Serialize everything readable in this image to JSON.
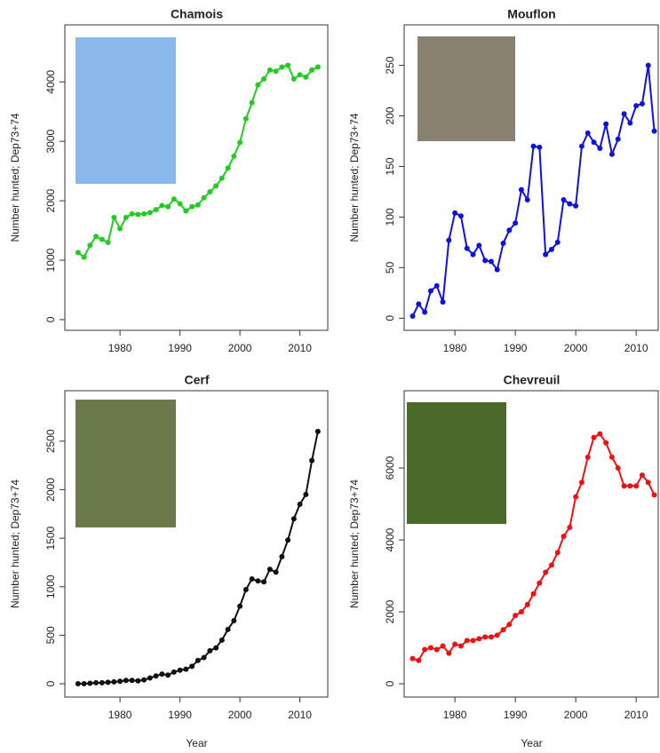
{
  "chart_data": [
    {
      "type": "line",
      "title": "Chamois",
      "y_label": "Number hunted; Dep73+74",
      "color": "#22cc22",
      "x": [
        1973,
        1974,
        1975,
        1976,
        1977,
        1978,
        1979,
        1980,
        1981,
        1982,
        1983,
        1984,
        1985,
        1986,
        1987,
        1988,
        1989,
        1990,
        1991,
        1992,
        1993,
        1994,
        1995,
        1996,
        1997,
        1998,
        1999,
        2000,
        2001,
        2002,
        2003,
        2004,
        2005,
        2006,
        2007,
        2008,
        2009,
        2010,
        2011,
        2012,
        2013
      ],
      "values": [
        1130,
        1050,
        1250,
        1400,
        1350,
        1300,
        1720,
        1530,
        1720,
        1780,
        1770,
        1780,
        1800,
        1850,
        1920,
        1900,
        2030,
        1950,
        1830,
        1900,
        1930,
        2050,
        2150,
        2250,
        2380,
        2550,
        2750,
        2980,
        3380,
        3650,
        3950,
        4050,
        4200,
        4180,
        4250,
        4280,
        4050,
        4120,
        4080,
        4200,
        4250
      ],
      "xlim": [
        1970.8,
        2014.8
      ],
      "xticks": [
        1980,
        1990,
        2000,
        2010
      ],
      "ylim": [
        -180,
        4960
      ],
      "yticks": [
        0,
        1000,
        2000,
        3000,
        4000
      ]
    },
    {
      "type": "line",
      "title": "Mouflon",
      "y_label": "Number hunted; Dep73+74",
      "color": "#1111dd",
      "x": [
        1973,
        1974,
        1975,
        1976,
        1977,
        1978,
        1979,
        1980,
        1981,
        1982,
        1983,
        1984,
        1985,
        1986,
        1987,
        1988,
        1989,
        1990,
        1991,
        1992,
        1993,
        1994,
        1995,
        1996,
        1997,
        1998,
        1999,
        2000,
        2001,
        2002,
        2003,
        2004,
        2005,
        2006,
        2007,
        2008,
        2009,
        2010,
        2011,
        2012,
        2013
      ],
      "values": [
        2,
        14,
        6,
        27,
        32,
        16,
        77,
        104,
        101,
        69,
        63,
        72,
        57,
        56,
        48,
        74,
        87,
        94,
        127,
        117,
        170,
        169,
        63,
        68,
        75,
        117,
        113,
        111,
        170,
        183,
        174,
        168,
        192,
        162,
        177,
        202,
        193,
        210,
        212,
        250,
        185
      ],
      "xlim": [
        1971.6,
        2013.8
      ],
      "xticks": [
        1980,
        1990,
        2000,
        2010
      ],
      "ylim": [
        -12,
        290
      ],
      "yticks": [
        0,
        50,
        100,
        150,
        200,
        250
      ]
    },
    {
      "type": "line",
      "title": "Cerf",
      "y_label": "Number hunted; Dep73+74",
      "x_label": "Year",
      "color": "#111111",
      "x": [
        1973,
        1974,
        1975,
        1976,
        1977,
        1978,
        1979,
        1980,
        1981,
        1982,
        1983,
        1984,
        1985,
        1986,
        1987,
        1988,
        1989,
        1990,
        1991,
        1992,
        1993,
        1994,
        1995,
        1996,
        1997,
        1998,
        1999,
        2000,
        2001,
        2002,
        2003,
        2004,
        2005,
        2006,
        2007,
        2008,
        2009,
        2010,
        2011,
        2012,
        2013
      ],
      "values": [
        0,
        0,
        5,
        10,
        10,
        15,
        20,
        25,
        35,
        35,
        30,
        40,
        60,
        80,
        100,
        90,
        120,
        140,
        150,
        180,
        240,
        270,
        340,
        370,
        450,
        560,
        650,
        800,
        970,
        1080,
        1060,
        1050,
        1180,
        1150,
        1310,
        1480,
        1700,
        1850,
        1950,
        2300,
        2600
      ],
      "xlim": [
        1970.8,
        2014.8
      ],
      "xticks": [
        1980,
        1990,
        2000,
        2010
      ],
      "ylim": [
        -137,
        3020
      ],
      "yticks": [
        0,
        500,
        1000,
        1500,
        2000,
        2500
      ]
    },
    {
      "type": "line",
      "title": "Chevreuil",
      "y_label": "Number hunted; Dep73+74",
      "x_label": "Year",
      "color": "#ee1111",
      "x": [
        1973,
        1974,
        1975,
        1976,
        1977,
        1978,
        1979,
        1980,
        1981,
        1982,
        1983,
        1984,
        1985,
        1986,
        1987,
        1988,
        1989,
        1990,
        1991,
        1992,
        1993,
        1994,
        1995,
        1996,
        1997,
        1998,
        1999,
        2000,
        2001,
        2002,
        2003,
        2004,
        2005,
        2006,
        2007,
        2008,
        2009,
        2010,
        2011,
        2012,
        2013
      ],
      "values": [
        700,
        650,
        950,
        1000,
        950,
        1050,
        850,
        1100,
        1050,
        1200,
        1200,
        1250,
        1300,
        1300,
        1350,
        1500,
        1650,
        1900,
        2000,
        2200,
        2500,
        2800,
        3100,
        3300,
        3650,
        4100,
        4350,
        5200,
        5600,
        6300,
        6850,
        6950,
        6700,
        6300,
        6000,
        5500,
        5500,
        5500,
        5800,
        5600,
        5250
      ],
      "xlim": [
        1971.6,
        2013.8
      ],
      "xticks": [
        1980,
        1990,
        2000,
        2010
      ],
      "ylim": [
        -370,
        8150
      ],
      "yticks": [
        0,
        2000,
        4000,
        6000
      ]
    }
  ]
}
